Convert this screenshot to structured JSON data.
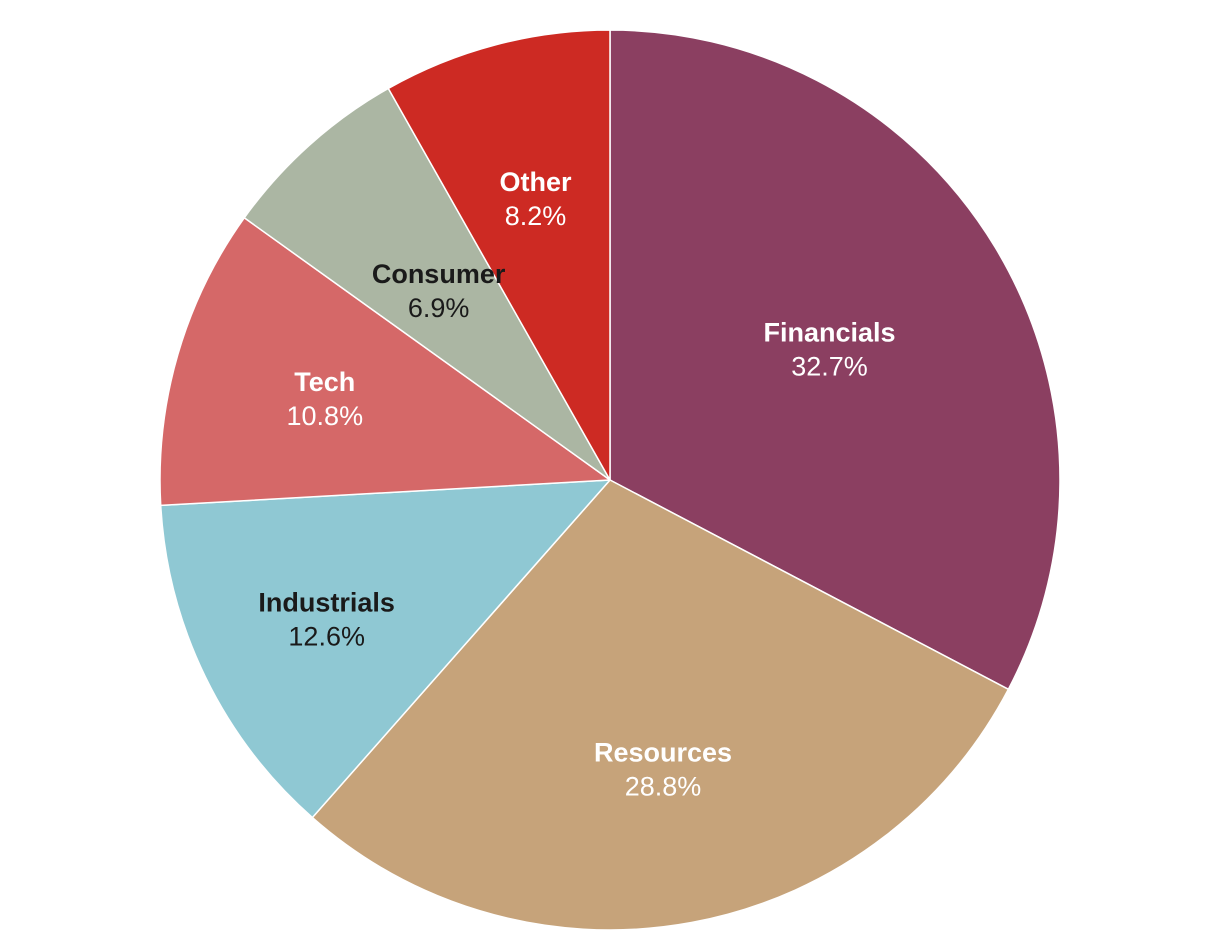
{
  "chart_data": {
    "type": "pie",
    "title": "",
    "start_angle_deg": 0,
    "direction": "clockwise",
    "slices": [
      {
        "label": "Financials",
        "value": 32.7,
        "value_label": "32.7%",
        "color": "#8b3f61",
        "text_color": "#ffffff"
      },
      {
        "label": "Resources",
        "value": 28.8,
        "value_label": "28.8%",
        "color": "#c6a37a",
        "text_color": "#ffffff"
      },
      {
        "label": "Industrials",
        "value": 12.6,
        "value_label": "12.6%",
        "color": "#8fc8d3",
        "text_color": "#1a1a1a"
      },
      {
        "label": "Tech",
        "value": 10.8,
        "value_label": "10.8%",
        "color": "#d56868",
        "text_color": "#ffffff"
      },
      {
        "label": "Consumer",
        "value": 6.9,
        "value_label": "6.9%",
        "color": "#abb6a3",
        "text_color": "#1a1a1a"
      },
      {
        "label": "Other",
        "value": 8.2,
        "value_label": "8.2%",
        "color": "#cd2a23",
        "text_color": "#ffffff"
      }
    ]
  }
}
